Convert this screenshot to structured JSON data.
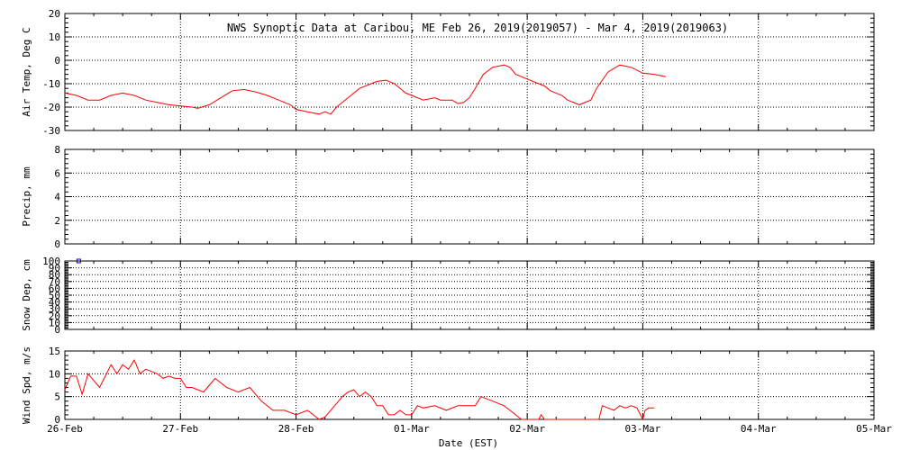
{
  "title": "NWS Synoptic Data at Caribou, ME   Feb 26, 2019(2019057) - Mar  4, 2019(2019063)",
  "xlabel": "Date (EST)",
  "x_ticks": [
    "26-Feb",
    "27-Feb",
    "28-Feb",
    "01-Mar",
    "02-Mar",
    "03-Mar",
    "04-Mar",
    "05-Mar"
  ],
  "colors": {
    "series": "#ff0000",
    "snow_marker": "#0000ff",
    "axes": "#000000"
  },
  "chart_data": [
    {
      "type": "line",
      "ylabel": "Air Temp, Deg C",
      "ylim": [
        -30,
        20
      ],
      "yticks": [
        -30,
        -20,
        -10,
        0,
        10,
        20
      ],
      "grid": true,
      "series": [
        {
          "x_days": [
            0,
            0.1,
            0.2,
            0.3,
            0.4,
            0.5,
            0.6,
            0.7,
            0.8,
            0.9,
            1.0,
            1.1,
            1.15,
            1.25,
            1.35,
            1.45,
            1.55,
            1.65,
            1.75,
            1.85,
            1.95,
            2.0,
            2.1,
            2.2,
            2.25,
            2.3,
            2.35,
            2.45,
            2.55,
            2.65,
            2.7,
            2.78,
            2.85,
            2.95,
            3.0,
            3.1,
            3.2,
            3.25,
            3.35,
            3.4,
            3.45,
            3.5,
            3.55,
            3.62,
            3.7,
            3.75,
            3.8,
            3.85,
            3.9,
            4.0,
            4.1,
            4.15,
            4.2,
            4.3,
            4.35,
            4.45,
            4.55,
            4.6,
            4.7,
            4.8,
            4.9,
            5.0,
            5.1,
            5.2
          ],
          "y": [
            -14,
            -15,
            -17,
            -17,
            -15,
            -14,
            -15,
            -17,
            -18,
            -19,
            -19.5,
            -20,
            -20.5,
            -19,
            -16,
            -13,
            -12.5,
            -13.5,
            -15,
            -17,
            -19,
            -21,
            -22,
            -23,
            -22,
            -23,
            -20,
            -16,
            -12,
            -10,
            -9,
            -8.5,
            -10,
            -14,
            -15,
            -17,
            -16,
            -17,
            -17,
            -18.5,
            -18,
            -16,
            -12,
            -6,
            -3,
            -2.5,
            -2,
            -3,
            -6,
            -8,
            -10,
            -11,
            -13,
            -15,
            -17,
            -19,
            -17,
            -12,
            -5,
            -2,
            -3,
            -5.5,
            -6,
            -7
          ]
        }
      ]
    },
    {
      "type": "line",
      "ylabel": "Precip, mm",
      "ylim": [
        0,
        8
      ],
      "yticks": [
        0,
        2,
        4,
        6,
        8
      ],
      "grid": true,
      "series": []
    },
    {
      "type": "scatter",
      "ylabel": "Snow Dep, cm",
      "ylim": [
        0,
        100
      ],
      "yticks": [
        0,
        10,
        20,
        30,
        40,
        50,
        60,
        70,
        80,
        90,
        100
      ],
      "grid": true,
      "series": [
        {
          "x_days": [
            0.12
          ],
          "y": [
            100
          ]
        }
      ]
    },
    {
      "type": "line",
      "ylabel": "Wind Spd, m/s",
      "ylim": [
        0,
        15
      ],
      "yticks": [
        0,
        5,
        10,
        15
      ],
      "grid": true,
      "series": [
        {
          "x_days": [
            0,
            0.05,
            0.1,
            0.15,
            0.2,
            0.3,
            0.4,
            0.45,
            0.5,
            0.55,
            0.6,
            0.65,
            0.7,
            0.75,
            0.8,
            0.85,
            0.9,
            0.95,
            1.0,
            1.05,
            1.1,
            1.2,
            1.3,
            1.4,
            1.5,
            1.6,
            1.7,
            1.8,
            1.9,
            2.0,
            2.1,
            2.2,
            2.25,
            2.3,
            2.4,
            2.45,
            2.5,
            2.55,
            2.6,
            2.65,
            2.7,
            2.75,
            2.8,
            2.85,
            2.9,
            2.95,
            3.0,
            3.05,
            3.1,
            3.2,
            3.3,
            3.4,
            3.5,
            3.55,
            3.6,
            3.7,
            3.8,
            3.85,
            3.9,
            3.95,
            4.0,
            4.05,
            4.1,
            4.12,
            4.15,
            4.2,
            4.25,
            4.3,
            4.35,
            4.4,
            4.45,
            4.5,
            4.55,
            4.6,
            4.62,
            4.65,
            4.7,
            4.75,
            4.8,
            4.85,
            4.9,
            4.95,
            5.0,
            5.02,
            5.05,
            5.1
          ],
          "y": [
            6.5,
            9.5,
            9.5,
            5.5,
            10,
            7,
            12,
            10,
            12,
            11,
            13,
            10,
            11,
            10.5,
            10,
            9,
            9.5,
            9,
            9,
            7,
            7,
            6,
            9,
            7,
            6,
            7,
            4,
            2,
            2,
            1,
            2,
            0,
            0.5,
            2,
            5,
            6,
            6.5,
            5,
            6,
            5,
            3,
            3,
            1,
            1,
            2,
            1,
            1,
            3,
            2.5,
            3,
            2,
            3,
            3,
            3,
            5,
            4,
            3,
            2,
            1,
            0,
            0,
            0,
            0,
            1,
            0,
            0,
            0,
            0,
            0,
            0,
            0,
            0,
            0,
            0,
            0,
            3,
            2.5,
            2,
            3,
            2.5,
            3,
            2.5,
            0,
            2,
            2.5,
            2.5
          ]
        }
      ]
    }
  ]
}
